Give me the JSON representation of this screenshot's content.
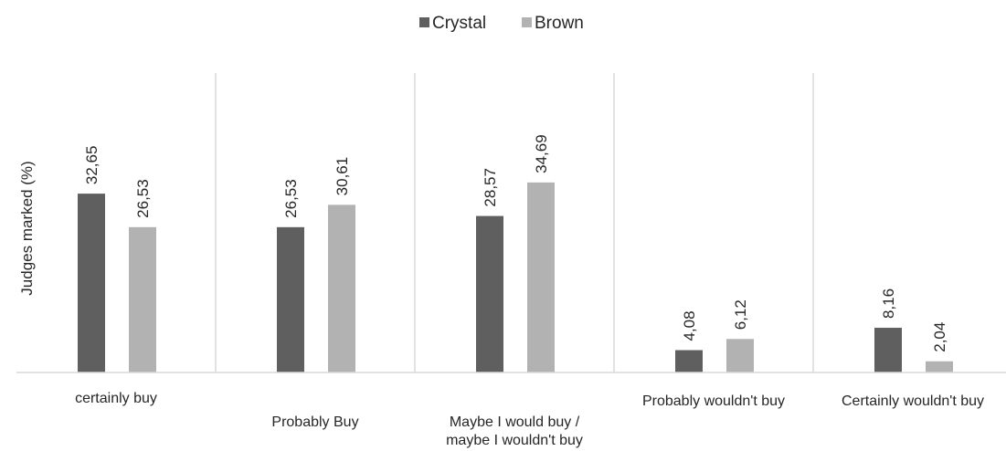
{
  "chart_data": {
    "type": "bar",
    "title": "",
    "xlabel": "",
    "ylabel": "Judges marked (%)",
    "ylim": [
      0,
      40
    ],
    "grid": false,
    "legend_position": "top-center",
    "categories": [
      [
        "certainly buy"
      ],
      [
        "Probably Buy"
      ],
      [
        "Maybe I would buy /",
        "maybe I wouldn't buy"
      ],
      [
        "Probably wouldn't buy"
      ],
      [
        "Certainly wouldn't buy"
      ]
    ],
    "series": [
      {
        "name": "Crystal",
        "color": "#5f5f5f",
        "values": [
          32.65,
          26.53,
          28.57,
          4.08,
          8.16
        ],
        "labels": [
          "32,65",
          "26,53",
          "28,57",
          "4,08",
          "8,16"
        ]
      },
      {
        "name": "Brown",
        "color": "#b2b2b2",
        "values": [
          26.53,
          30.61,
          34.69,
          6.12,
          2.04
        ],
        "labels": [
          "26,53",
          "30,61",
          "34,69",
          "6,12",
          "2,04"
        ]
      }
    ]
  }
}
